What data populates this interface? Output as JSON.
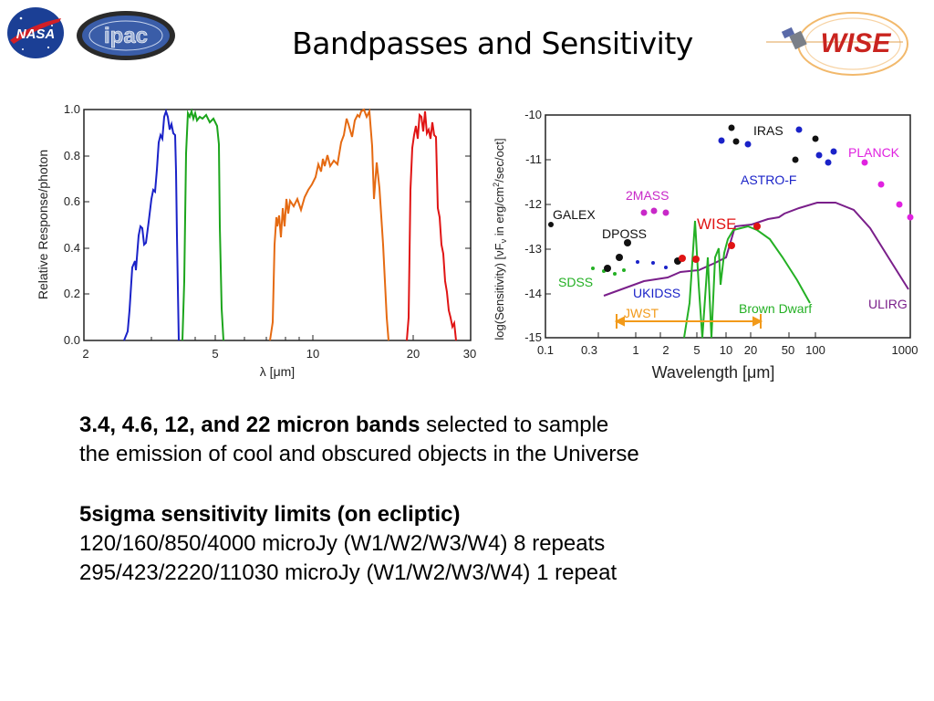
{
  "title": "Bandpasses and Sensitivity",
  "logos": {
    "nasa": "NASA",
    "ipac": "ipac",
    "wise": "WISE"
  },
  "left_plot": {
    "ylabel": "Relative Response/photon",
    "xlabel": "λ [μm]",
    "yticks": [
      "0.0",
      "0.2",
      "0.4",
      "0.6",
      "0.8",
      "1.0"
    ],
    "xticks": [
      "2",
      "5",
      "10",
      "20",
      "30"
    ]
  },
  "right_plot": {
    "ylabel": "log(Sensitivity)  [νF",
    "ylabel_sub": "ν",
    "ylabel_tail": " in erg/cm",
    "ylabel_sup": "2",
    "ylabel_end": "/sec/oct]",
    "xlabel": "Wavelength  [μm]",
    "yticks": [
      "-10",
      "-11",
      "-12",
      "-13",
      "-14",
      "-15"
    ],
    "xticks": [
      "0.1",
      "0.3",
      "1",
      "2",
      "5",
      "10",
      "20",
      "50",
      "100",
      "1000"
    ],
    "labels": {
      "iras": "IRAS",
      "planck": "PLANCK",
      "astrof": "ASTRO-F",
      "twomass": "2MASS",
      "galex": "GALEX",
      "wise": "WISE",
      "dposs": "DPOSS",
      "sdss": "SDSS",
      "ukidss": "UKIDSS",
      "brown": "Brown Dwarf",
      "ulirg": "ULIRG",
      "jwst": "JWST"
    }
  },
  "text": {
    "p1_bold": "3.4, 4.6, 12, and 22 micron bands",
    "p1_rest": " selected to sample",
    "p1_line2": "the emission of cool and obscured objects in the Universe",
    "p2_head": "5sigma sensitivity limits (on ecliptic)",
    "p2_line1": "120/160/850/4000 microJy (W1/W2/W3/W4)  8 repeats",
    "p2_line2": "295/423/2220/11030 microJy  (W1/W2/W3/W4) 1 repeat"
  }
}
